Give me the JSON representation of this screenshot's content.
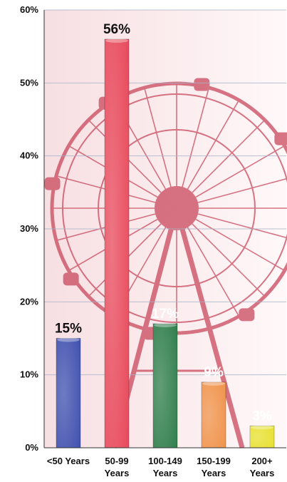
{
  "chart_data": {
    "type": "bar",
    "categories": [
      [
        "<50 Years"
      ],
      [
        "50-99",
        "Years"
      ],
      [
        "100-149",
        "Years"
      ],
      [
        "150-199",
        "Years"
      ],
      [
        "200+",
        "Years"
      ]
    ],
    "values": [
      15,
      56,
      17,
      9,
      3
    ],
    "data_labels": [
      "15%",
      "56%",
      "17%",
      "9%",
      "3%"
    ],
    "bar_colors": [
      "#3f4fae",
      "#e8485a",
      "#2e7d4a",
      "#f0924a",
      "#e7e02e"
    ],
    "data_label_colors": [
      "#111111",
      "#111111",
      "#ffffff",
      "#ffffff",
      "#ffffff"
    ],
    "y_ticks": [
      "0%",
      "10%",
      "20%",
      "30%",
      "40%",
      "50%",
      "60%"
    ],
    "ylim": [
      0,
      60
    ],
    "grid": true,
    "legend": "none",
    "background_image": "ferris-wheel"
  }
}
